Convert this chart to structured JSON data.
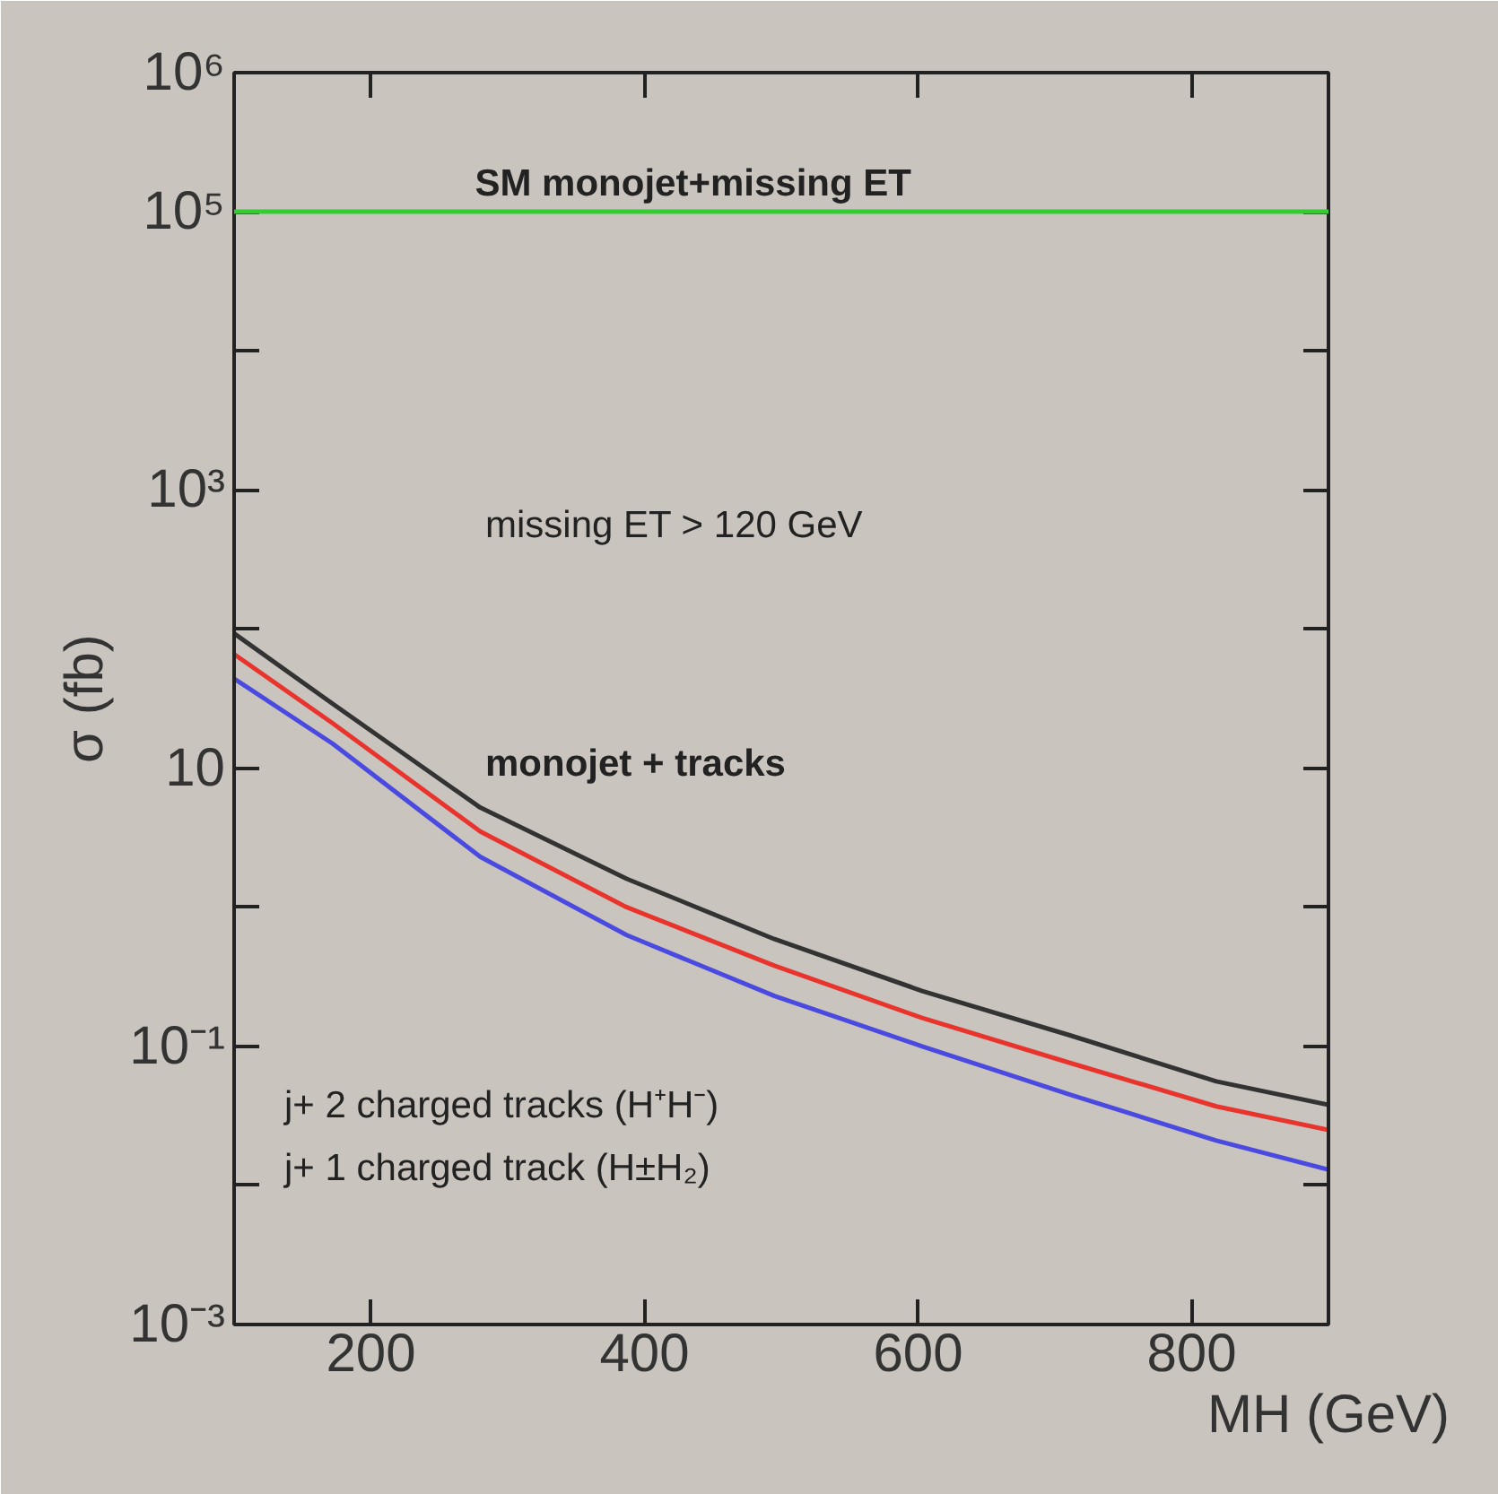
{
  "chart_data": {
    "type": "line",
    "log": "y",
    "grid": false,
    "marker": "none",
    "line_style": "solid",
    "xlabel": "MH (GeV)",
    "ylabel": "σ (fb)",
    "xlim": [
      100,
      900
    ],
    "xticks": [
      200,
      400,
      600,
      800
    ],
    "ylim": [
      0.001,
      1000000
    ],
    "yticks": [
      {
        "value": 1000000,
        "label": "10⁶"
      },
      {
        "value": 100000,
        "label": "10⁵"
      },
      {
        "value": 10000,
        "label": null
      },
      {
        "value": 1000,
        "label": "10³"
      },
      {
        "value": 100,
        "label": null
      },
      {
        "value": 10,
        "label": "10"
      },
      {
        "value": 1,
        "label": null
      },
      {
        "value": 0.1,
        "label": "10⁻¹"
      },
      {
        "value": 0.01,
        "label": null
      },
      {
        "value": 0.001,
        "label": "10⁻³"
      }
    ],
    "x": [
      100,
      172,
      280,
      387,
      495,
      603,
      711,
      818,
      900
    ],
    "series": [
      {
        "color": "#333333",
        "values": [
          93,
          29,
          5.2,
          1.6,
          0.59,
          0.25,
          0.12,
          0.056,
          0.038
        ]
      },
      {
        "color": "#e8342c",
        "values": [
          66,
          21,
          3.5,
          1.0,
          0.38,
          0.16,
          0.076,
          0.037,
          0.025
        ]
      },
      {
        "color": "#4a4ae0",
        "values": [
          44,
          15,
          2.3,
          0.63,
          0.23,
          0.1,
          0.045,
          0.021,
          0.013
        ]
      }
    ],
    "ref_lines": [
      {
        "axis": "y",
        "value": 100000,
        "label": "SM monojet+missing ET",
        "color": "#33cc33"
      }
    ],
    "annotations": [
      "missing ET > 120 GeV",
      "monojet + tracks",
      "j+ 2 charged tracks (H⁺H⁻)",
      "j+ 1 charged track (H±H₂)"
    ]
  }
}
